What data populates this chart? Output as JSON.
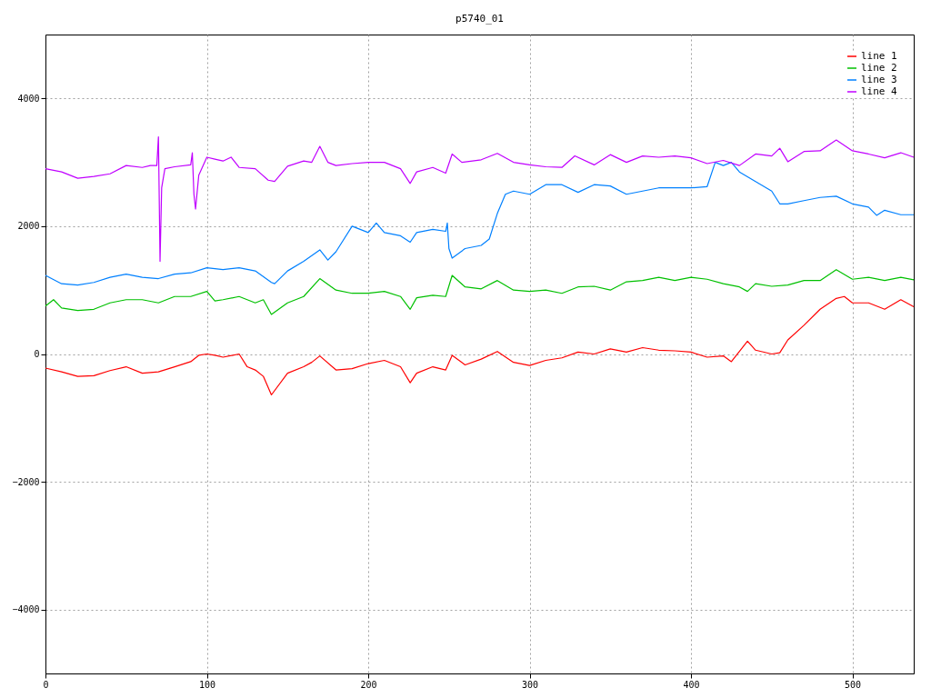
{
  "chart_data": {
    "type": "line",
    "title": "p5740_01",
    "xlim": [
      0,
      538
    ],
    "xticks": [
      0,
      100,
      200,
      300,
      400,
      500
    ],
    "ylim": [
      -5000,
      5000
    ],
    "yticks": [
      -4000,
      -2000,
      0,
      2000,
      4000
    ],
    "grid": true,
    "legend": "top right",
    "series": [
      {
        "name": "line 1",
        "color": "#ff0000",
        "x": [
          0,
          10,
          20,
          30,
          40,
          50,
          60,
          70,
          80,
          90,
          95,
          100,
          105,
          110,
          120,
          125,
          130,
          135,
          140,
          150,
          160,
          165,
          170,
          180,
          190,
          200,
          210,
          220,
          226,
          230,
          240,
          248,
          252,
          260,
          270,
          280,
          290,
          300,
          310,
          320,
          330,
          340,
          350,
          360,
          370,
          380,
          390,
          400,
          410,
          420,
          425,
          435,
          440,
          450,
          455,
          460,
          470,
          480,
          490,
          495,
          500,
          510,
          520,
          530,
          538
        ],
        "values": [
          -220,
          -280,
          -350,
          -340,
          -260,
          -200,
          -300,
          -280,
          -200,
          -120,
          -20,
          0,
          -20,
          -50,
          0,
          -200,
          -250,
          -350,
          -640,
          -300,
          -200,
          -130,
          -30,
          -250,
          -230,
          -150,
          -100,
          -200,
          -450,
          -300,
          -200,
          -250,
          -20,
          -170,
          -80,
          40,
          -130,
          -180,
          -100,
          -60,
          30,
          0,
          80,
          30,
          100,
          60,
          50,
          30,
          -50,
          -30,
          -120,
          200,
          60,
          0,
          20,
          220,
          450,
          700,
          870,
          900,
          800,
          800,
          700,
          850,
          740
        ]
      },
      {
        "name": "line 2",
        "color": "#00c000",
        "x": [
          0,
          5,
          10,
          20,
          30,
          40,
          50,
          60,
          70,
          80,
          90,
          100,
          105,
          110,
          120,
          130,
          135,
          140,
          150,
          160,
          170,
          180,
          190,
          200,
          210,
          220,
          226,
          230,
          240,
          248,
          252,
          260,
          270,
          280,
          290,
          300,
          310,
          320,
          330,
          340,
          350,
          360,
          370,
          380,
          390,
          400,
          410,
          420,
          430,
          435,
          440,
          450,
          460,
          470,
          480,
          490,
          500,
          510,
          520,
          530,
          538
        ],
        "values": [
          750,
          850,
          720,
          680,
          700,
          800,
          850,
          850,
          800,
          900,
          900,
          980,
          830,
          850,
          900,
          800,
          850,
          620,
          800,
          900,
          1180,
          1000,
          950,
          950,
          980,
          900,
          700,
          880,
          920,
          900,
          1230,
          1050,
          1020,
          1150,
          1000,
          980,
          1000,
          950,
          1050,
          1060,
          1000,
          1130,
          1150,
          1200,
          1150,
          1200,
          1170,
          1100,
          1050,
          980,
          1100,
          1060,
          1080,
          1150,
          1150,
          1320,
          1170,
          1200,
          1150,
          1200,
          1160
        ]
      },
      {
        "name": "line 3",
        "color": "#0080ff",
        "x": [
          0,
          10,
          20,
          30,
          40,
          50,
          60,
          70,
          80,
          90,
          100,
          110,
          120,
          130,
          140,
          142,
          150,
          160,
          170,
          175,
          180,
          190,
          200,
          205,
          210,
          220,
          226,
          230,
          240,
          248,
          249,
          250,
          252,
          260,
          270,
          275,
          280,
          285,
          290,
          300,
          310,
          320,
          330,
          340,
          350,
          360,
          370,
          380,
          390,
          400,
          410,
          415,
          420,
          425,
          430,
          440,
          450,
          455,
          460,
          470,
          480,
          490,
          500,
          510,
          515,
          520,
          530,
          538
        ],
        "values": [
          1230,
          1100,
          1080,
          1120,
          1200,
          1250,
          1200,
          1180,
          1250,
          1270,
          1350,
          1320,
          1350,
          1300,
          1120,
          1100,
          1300,
          1450,
          1630,
          1470,
          1600,
          2000,
          1900,
          2050,
          1900,
          1850,
          1750,
          1900,
          1950,
          1920,
          2050,
          1650,
          1500,
          1650,
          1700,
          1800,
          2200,
          2500,
          2550,
          2500,
          2650,
          2650,
          2530,
          2650,
          2630,
          2500,
          2550,
          2600,
          2600,
          2600,
          2620,
          3000,
          2950,
          3000,
          2850,
          2700,
          2550,
          2350,
          2350,
          2400,
          2450,
          2470,
          2350,
          2300,
          2170,
          2250,
          2180,
          2180
        ]
      },
      {
        "name": "line 4",
        "color": "#c000ff",
        "x": [
          0,
          10,
          20,
          30,
          40,
          50,
          60,
          65,
          69,
          70,
          71,
          72,
          74,
          80,
          90,
          91,
          92,
          93,
          95,
          100,
          105,
          110,
          115,
          120,
          130,
          138,
          142,
          150,
          160,
          165,
          170,
          175,
          180,
          190,
          200,
          210,
          220,
          226,
          230,
          240,
          248,
          252,
          258,
          270,
          280,
          290,
          300,
          310,
          320,
          328,
          340,
          350,
          360,
          370,
          380,
          390,
          400,
          410,
          420,
          430,
          440,
          450,
          455,
          460,
          470,
          480,
          490,
          500,
          510,
          520,
          530,
          538
        ],
        "values": [
          2900,
          2850,
          2750,
          2780,
          2820,
          2950,
          2920,
          2950,
          2950,
          3400,
          1450,
          2600,
          2900,
          2930,
          2960,
          3150,
          2500,
          2270,
          2800,
          3080,
          3050,
          3020,
          3080,
          2920,
          2900,
          2720,
          2700,
          2940,
          3020,
          3000,
          3250,
          3000,
          2950,
          2980,
          3000,
          3000,
          2900,
          2670,
          2850,
          2920,
          2830,
          3130,
          3000,
          3040,
          3140,
          3000,
          2960,
          2930,
          2920,
          3100,
          2960,
          3120,
          3000,
          3100,
          3080,
          3100,
          3070,
          2980,
          3030,
          2950,
          3130,
          3100,
          3220,
          3010,
          3170,
          3180,
          3350,
          3180,
          3130,
          3070,
          3150,
          3080
        ]
      }
    ]
  }
}
